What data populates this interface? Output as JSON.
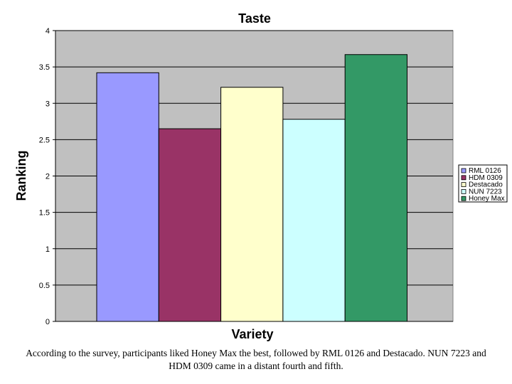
{
  "chart_data": {
    "type": "bar",
    "title": "Taste",
    "xlabel": "Variety",
    "ylabel": "Ranking",
    "ylim": [
      0,
      4
    ],
    "yticks": [
      0,
      0.5,
      1,
      1.5,
      2,
      2.5,
      3,
      3.5,
      4
    ],
    "grid": true,
    "legend_position": "right",
    "series": [
      {
        "name": "RML 0126",
        "value": 3.42,
        "color": "#9999ff"
      },
      {
        "name": "HDM 0309",
        "value": 2.65,
        "color": "#993366"
      },
      {
        "name": "Destacado",
        "value": 3.22,
        "color": "#ffffcc"
      },
      {
        "name": "NUN 7223",
        "value": 2.78,
        "color": "#ccffff"
      },
      {
        "name": "Honey Max",
        "value": 3.67,
        "color": "#339966"
      }
    ]
  },
  "colors": {
    "plot_background": "#c0c0c0",
    "gridline": "#000000"
  },
  "caption": "According to the survey, participants liked Honey Max the best, followed by RML 0126 and Destacado. NUN 7223 and HDM 0309 came in a distant fourth and fifth."
}
